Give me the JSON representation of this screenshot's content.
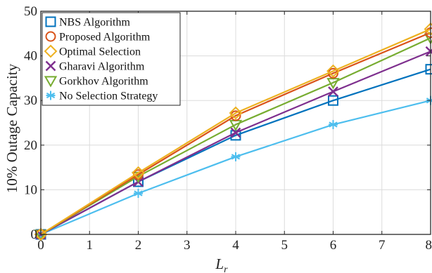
{
  "chart_data": {
    "type": "line",
    "xlabel": "L",
    "xlabel_sub": "r",
    "ylabel": "10% Outage Capacity",
    "xlim": [
      0,
      8
    ],
    "ylim": [
      0,
      50
    ],
    "x_ticks": [
      0,
      1,
      2,
      3,
      4,
      5,
      6,
      7,
      8
    ],
    "y_ticks": [
      0,
      10,
      20,
      30,
      40,
      50
    ],
    "grid": true,
    "legend_position": "top-left",
    "series": [
      {
        "name": "NBS Algorithm",
        "color": "#0072BD",
        "marker": "square",
        "x": [
          0,
          2,
          4,
          6,
          8
        ],
        "values": [
          0,
          11.8,
          22.2,
          30.0,
          37.0
        ]
      },
      {
        "name": "Proposed Algorithm",
        "color": "#D95319",
        "marker": "circle",
        "x": [
          0,
          2,
          4,
          6,
          8
        ],
        "values": [
          0,
          13.4,
          26.6,
          36.1,
          45.2
        ]
      },
      {
        "name": "Optimal Selection",
        "color": "#EDB120",
        "marker": "diamond",
        "x": [
          0,
          2,
          4,
          6,
          8
        ],
        "values": [
          0,
          13.8,
          27.2,
          36.6,
          46.0
        ]
      },
      {
        "name": "Gharavi Algorithm",
        "color": "#7E2F8E",
        "marker": "x",
        "x": [
          0,
          2,
          4,
          6,
          8
        ],
        "values": [
          0,
          11.8,
          22.8,
          32.0,
          41.0
        ]
      },
      {
        "name": "Gorkhov Algorithm",
        "color": "#77AC30",
        "marker": "triangle-down",
        "x": [
          0,
          2,
          4,
          6,
          8
        ],
        "values": [
          0,
          13.0,
          24.6,
          34.0,
          44.0
        ]
      },
      {
        "name": "No Selection Strategy",
        "color": "#4DBEEE",
        "marker": "asterisk",
        "x": [
          0,
          2,
          4,
          6,
          8
        ],
        "values": [
          0,
          9.2,
          17.4,
          24.6,
          30.0
        ]
      }
    ]
  }
}
